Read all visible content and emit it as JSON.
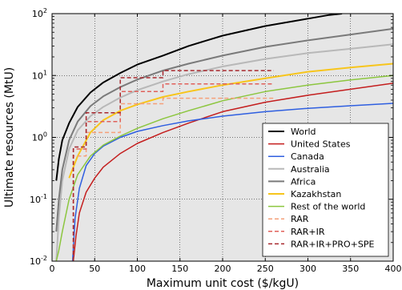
{
  "chart_data": {
    "type": "line",
    "xlabel": "Maximum unit cost ($/kgU)",
    "ylabel": "Ultimate resources (MtU)",
    "xlim": [
      0,
      400
    ],
    "ylim": [
      0.01,
      100
    ],
    "yscale": "log",
    "grid": true,
    "legend_position": "bottom-right",
    "x_ticks": [
      0,
      50,
      100,
      150,
      200,
      250,
      300,
      350,
      400
    ],
    "x_tick_labels": [
      "0",
      "50",
      "100",
      "150",
      "200",
      "250",
      "300",
      "350",
      "400"
    ],
    "y_ticks": [
      0.01,
      0.1,
      1,
      10,
      100
    ],
    "y_tick_labels": [
      {
        "base": "10",
        "exp": "-2"
      },
      {
        "base": "10",
        "exp": "-1"
      },
      {
        "base": "10",
        "exp": "0"
      },
      {
        "base": "10",
        "exp": "1"
      },
      {
        "base": "10",
        "exp": "2"
      }
    ],
    "series": [
      {
        "name": "World",
        "color": "#000000",
        "style": "solid",
        "width": 2,
        "points": [
          [
            5,
            0.2
          ],
          [
            8,
            0.45
          ],
          [
            12,
            0.9
          ],
          [
            20,
            1.7
          ],
          [
            30,
            3.1
          ],
          [
            45,
            5.3
          ],
          [
            60,
            7.7
          ],
          [
            80,
            11
          ],
          [
            100,
            15
          ],
          [
            130,
            21
          ],
          [
            160,
            30
          ],
          [
            200,
            44
          ],
          [
            250,
            63
          ],
          [
            300,
            83
          ],
          [
            325,
            95
          ],
          [
            340,
            100
          ]
        ]
      },
      {
        "name": "United States",
        "color": "#c41e1e",
        "style": "solid",
        "width": 1.5,
        "points": [
          [
            25,
            0.01
          ],
          [
            28,
            0.025
          ],
          [
            32,
            0.06
          ],
          [
            40,
            0.13
          ],
          [
            50,
            0.22
          ],
          [
            60,
            0.33
          ],
          [
            80,
            0.55
          ],
          [
            100,
            0.8
          ],
          [
            130,
            1.2
          ],
          [
            160,
            1.7
          ],
          [
            200,
            2.6
          ],
          [
            250,
            3.7
          ],
          [
            300,
            4.8
          ],
          [
            350,
            6
          ],
          [
            400,
            7.5
          ]
        ]
      },
      {
        "name": "Canada",
        "color": "#2f5fe0",
        "style": "solid",
        "width": 1.5,
        "points": [
          [
            24,
            0.01
          ],
          [
            27,
            0.05
          ],
          [
            32,
            0.15
          ],
          [
            40,
            0.35
          ],
          [
            50,
            0.55
          ],
          [
            60,
            0.72
          ],
          [
            80,
            1
          ],
          [
            100,
            1.25
          ],
          [
            130,
            1.55
          ],
          [
            160,
            1.85
          ],
          [
            200,
            2.2
          ],
          [
            250,
            2.6
          ],
          [
            300,
            2.95
          ],
          [
            350,
            3.25
          ],
          [
            400,
            3.55
          ]
        ]
      },
      {
        "name": "Australia",
        "color": "#b8b8b8",
        "style": "solid",
        "width": 2,
        "points": [
          [
            5,
            0.01
          ],
          [
            8,
            0.05
          ],
          [
            12,
            0.2
          ],
          [
            20,
            0.65
          ],
          [
            30,
            1.3
          ],
          [
            45,
            2.2
          ],
          [
            60,
            3.1
          ],
          [
            80,
            4.4
          ],
          [
            100,
            5.8
          ],
          [
            130,
            8
          ],
          [
            160,
            10.5
          ],
          [
            200,
            14
          ],
          [
            250,
            18.5
          ],
          [
            300,
            23
          ],
          [
            350,
            27
          ],
          [
            400,
            32
          ]
        ]
      },
      {
        "name": "Africa",
        "color": "#7a7a7a",
        "style": "solid",
        "width": 2,
        "points": [
          [
            5,
            0.03
          ],
          [
            8,
            0.1
          ],
          [
            12,
            0.3
          ],
          [
            20,
            0.9
          ],
          [
            30,
            1.8
          ],
          [
            45,
            3.2
          ],
          [
            60,
            4.6
          ],
          [
            80,
            6.5
          ],
          [
            100,
            8.6
          ],
          [
            130,
            12
          ],
          [
            160,
            15.5
          ],
          [
            200,
            21
          ],
          [
            250,
            29
          ],
          [
            300,
            37
          ],
          [
            350,
            46
          ],
          [
            400,
            57
          ]
        ]
      },
      {
        "name": "Kazakhstan",
        "color": "#f7c51c",
        "style": "solid",
        "width": 2,
        "points": [
          [
            20,
            0.22
          ],
          [
            30,
            0.5
          ],
          [
            45,
            1.2
          ],
          [
            60,
            1.9
          ],
          [
            80,
            2.7
          ],
          [
            100,
            3.4
          ],
          [
            130,
            4.5
          ],
          [
            160,
            5.5
          ],
          [
            200,
            7
          ],
          [
            250,
            9
          ],
          [
            300,
            11.5
          ],
          [
            350,
            13.5
          ],
          [
            400,
            15.5
          ]
        ]
      },
      {
        "name": "Rest of the world",
        "color": "#8cc63f",
        "style": "solid",
        "width": 1.5,
        "points": [
          [
            5,
            0.01
          ],
          [
            8,
            0.015
          ],
          [
            12,
            0.03
          ],
          [
            20,
            0.1
          ],
          [
            30,
            0.25
          ],
          [
            45,
            0.5
          ],
          [
            60,
            0.75
          ],
          [
            80,
            1.05
          ],
          [
            100,
            1.4
          ],
          [
            130,
            2
          ],
          [
            160,
            2.7
          ],
          [
            200,
            3.9
          ],
          [
            250,
            5.5
          ],
          [
            300,
            7
          ],
          [
            350,
            8.5
          ],
          [
            400,
            10
          ]
        ]
      },
      {
        "name": "RAR",
        "color": "#f5a07a",
        "style": "dashed",
        "width": 1.5,
        "points": [
          [
            25,
            0.01
          ],
          [
            25,
            0.5
          ],
          [
            40,
            0.5
          ],
          [
            40,
            1.2
          ],
          [
            80,
            1.2
          ],
          [
            80,
            3.5
          ],
          [
            130,
            3.5
          ],
          [
            130,
            4.3
          ],
          [
            260,
            4.3
          ]
        ]
      },
      {
        "name": "RAR+IR",
        "color": "#e0605a",
        "style": "dashed",
        "width": 1.5,
        "points": [
          [
            25,
            0.01
          ],
          [
            25,
            0.65
          ],
          [
            40,
            0.65
          ],
          [
            40,
            1.8
          ],
          [
            80,
            1.8
          ],
          [
            80,
            5.5
          ],
          [
            130,
            5.5
          ],
          [
            130,
            7.3
          ],
          [
            260,
            7.3
          ]
        ]
      },
      {
        "name": "RAR+IR+PRO+SPE",
        "color": "#a8282e",
        "style": "dashed",
        "width": 1.5,
        "points": [
          [
            25,
            0.01
          ],
          [
            25,
            0.7
          ],
          [
            40,
            0.7
          ],
          [
            40,
            2.5
          ],
          [
            80,
            2.5
          ],
          [
            80,
            9.2
          ],
          [
            130,
            9.2
          ],
          [
            130,
            12
          ],
          [
            260,
            12
          ]
        ]
      }
    ]
  }
}
